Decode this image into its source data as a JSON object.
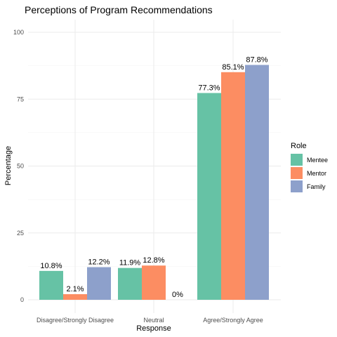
{
  "chart_data": {
    "type": "bar",
    "title": "Perceptions of Program Recommendations",
    "xlabel": "Response",
    "ylabel": "Percentage",
    "categories": [
      "Disagree/Strongly Disagree",
      "Neutral",
      "Agree/Strongly Agree"
    ],
    "series": [
      {
        "name": "Mentee",
        "color": "#66c2a5",
        "values": [
          10.8,
          11.9,
          77.3
        ],
        "labels": [
          "10.8%",
          "11.9%",
          "77.3%"
        ]
      },
      {
        "name": "Mentor",
        "color": "#fc8d62",
        "values": [
          2.1,
          12.8,
          85.1
        ],
        "labels": [
          "2.1%",
          "12.8%",
          "85.1%"
        ]
      },
      {
        "name": "Family",
        "color": "#8da0cb",
        "values": [
          12.2,
          0,
          87.8
        ],
        "labels": [
          "12.2%",
          "0%",
          "87.8%"
        ]
      }
    ],
    "ylim": [
      0,
      100
    ],
    "yticks": [
      0,
      25,
      50,
      75,
      100
    ],
    "grid": true,
    "legend": {
      "title": "Role",
      "placement": "right"
    }
  }
}
